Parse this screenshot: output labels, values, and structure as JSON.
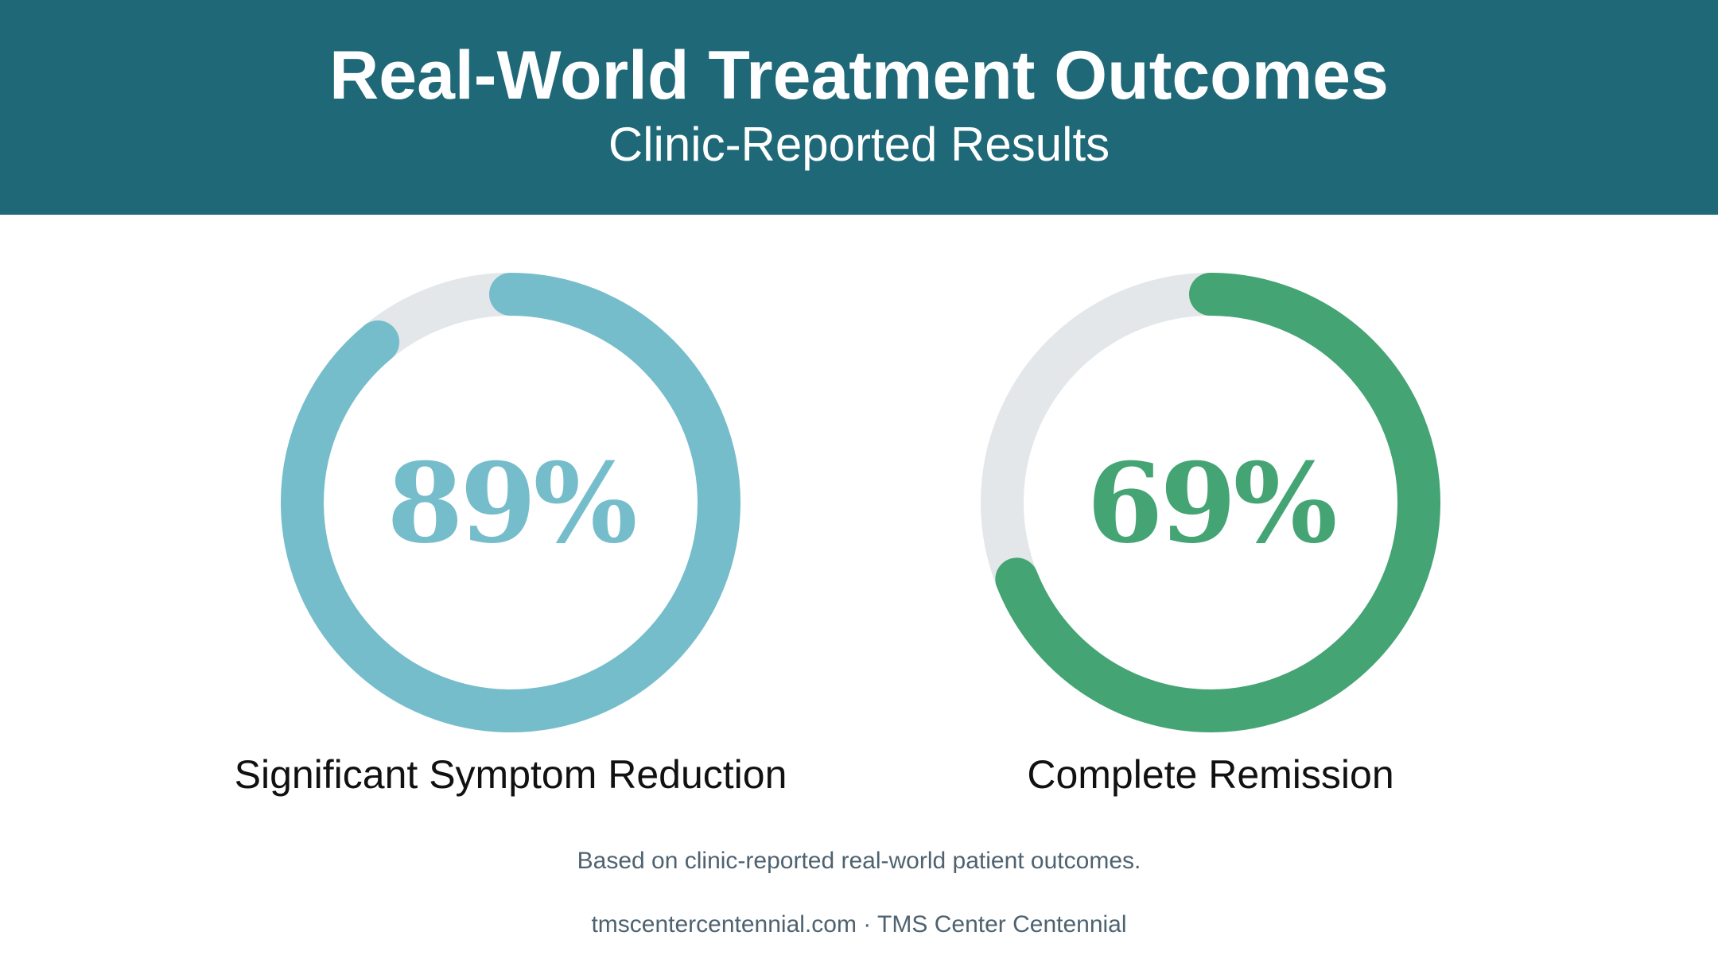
{
  "header": {
    "title": "Real-World Treatment Outcomes",
    "subtitle": "Clinic-Reported Results"
  },
  "chart_data": [
    {
      "type": "pie",
      "value_label": "89%",
      "value": 89,
      "max": 100,
      "label": "Significant Symptom Reduction",
      "color": "#76bdcb",
      "track_color": "#e3e7ea"
    },
    {
      "type": "pie",
      "value_label": "69%",
      "value": 69,
      "max": 100,
      "label": "Complete Remission",
      "color": "#44a474",
      "track_color": "#e3e7ea"
    }
  ],
  "footer": {
    "note": "Based on clinic-reported real-world patient outcomes.",
    "source": "tmscentercentennial.com · TMS Center Centennial"
  }
}
